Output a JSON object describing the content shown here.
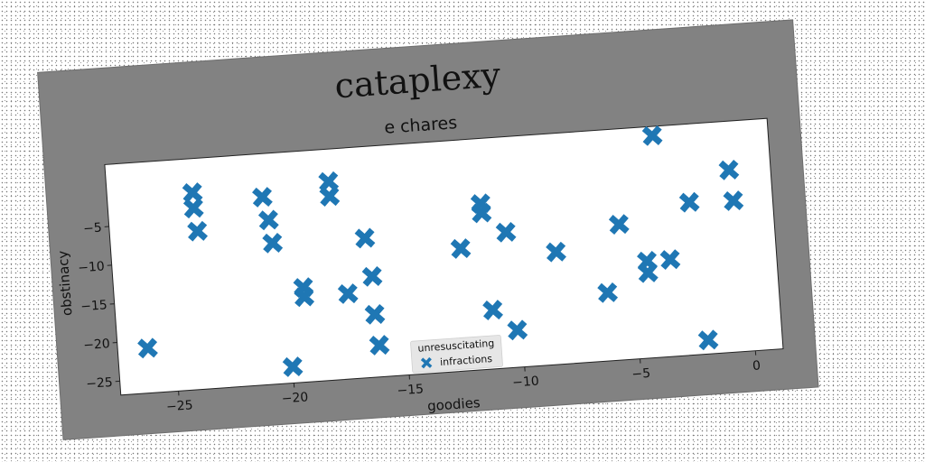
{
  "chart_data": {
    "type": "scatter",
    "title": "cataplexy",
    "subtitle": "e chares",
    "xlabel": "goodies",
    "ylabel": "obstinacy",
    "xlim": [
      -27.5,
      1.2
    ],
    "ylim": [
      -26.8,
      3.0
    ],
    "xticks": [
      -25,
      -20,
      -15,
      -10,
      -5,
      0
    ],
    "yticks": [
      -5,
      -10,
      -15,
      -20,
      -25
    ],
    "grid": false,
    "legend": {
      "title": "unresuscitating",
      "placement": "lower center"
    },
    "colors": {
      "series": "#1f77b4",
      "frame": "#808080",
      "axes_bg": "#ffffff"
    },
    "marker": "X",
    "series": [
      {
        "name": "infractions",
        "points": [
          {
            "x": -26.2,
            "y": -21.0
          },
          {
            "x": -23.8,
            "y": -1.4
          },
          {
            "x": -23.8,
            "y": -3.4
          },
          {
            "x": -23.7,
            "y": -6.4
          },
          {
            "x": -20.8,
            "y": -2.6
          },
          {
            "x": -20.6,
            "y": -5.6
          },
          {
            "x": -20.5,
            "y": -8.6
          },
          {
            "x": -20.0,
            "y": -24.7
          },
          {
            "x": -19.3,
            "y": -14.6
          },
          {
            "x": -19.3,
            "y": -15.8
          },
          {
            "x": -17.9,
            "y": -1.2
          },
          {
            "x": -17.9,
            "y": -3.1
          },
          {
            "x": -17.4,
            "y": -15.8
          },
          {
            "x": -16.5,
            "y": -8.8
          },
          {
            "x": -16.3,
            "y": -13.8
          },
          {
            "x": -16.3,
            "y": -18.7
          },
          {
            "x": -16.2,
            "y": -22.7
          },
          {
            "x": -12.4,
            "y": -11.0
          },
          {
            "x": -11.4,
            "y": -5.4
          },
          {
            "x": -11.4,
            "y": -6.6
          },
          {
            "x": -11.2,
            "y": -19.2
          },
          {
            "x": -10.4,
            "y": -9.3
          },
          {
            "x": -10.2,
            "y": -22.0
          },
          {
            "x": -8.3,
            "y": -12.3
          },
          {
            "x": -6.2,
            "y": -18.0
          },
          {
            "x": -5.5,
            "y": -9.3
          },
          {
            "x": -4.4,
            "y": -14.3
          },
          {
            "x": -4.4,
            "y": -15.8
          },
          {
            "x": -3.8,
            "y": 1.8
          },
          {
            "x": -3.4,
            "y": -14.3
          },
          {
            "x": -2.4,
            "y": -7.1
          },
          {
            "x": -2.0,
            "y": -25.0
          },
          {
            "x": -0.6,
            "y": -3.3
          },
          {
            "x": -0.5,
            "y": -7.3
          }
        ]
      }
    ]
  }
}
